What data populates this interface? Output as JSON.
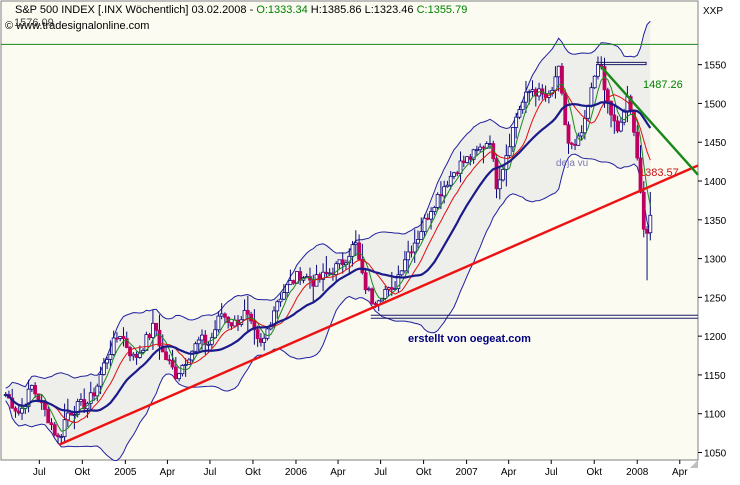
{
  "header": {
    "title_prefix": "S&P 500 INDEX [.INX  Wöchentlich] 03.02.2008 - ",
    "open": "O:1333.34",
    "high": "H:1385.86",
    "low": "L:1323.46",
    "close": "C:1355.79",
    "copyright": "© www.tradesignalonline.com",
    "symbol": "XXP",
    "hline_label": "1576.09"
  },
  "colors": {
    "background": "#fbfbf1",
    "price_up": "#0a0a7a",
    "price_down": "#c00060",
    "ma_fast": "#e01010",
    "ma_slow": "#1a1a8a",
    "ma_mid": "#1a8a1a",
    "bollinger": "#2020a0",
    "support": "#ee1111",
    "resistance": "#188818",
    "top_line": "#188818",
    "text_green": "#008000",
    "text_black": "#000000"
  },
  "chart_data": {
    "type": "line",
    "title": "S&P 500 INDEX [.INX  Wöchentlich] 03.02.2008",
    "ylim": [
      1040,
      1580
    ],
    "y_ticks": [
      1050,
      1100,
      1150,
      1200,
      1250,
      1300,
      1350,
      1400,
      1450,
      1500,
      1550
    ],
    "x_ticks": [
      {
        "label": "Jul",
        "date": "2004-07-01"
      },
      {
        "label": "Okt",
        "date": "2004-10-01"
      },
      {
        "label": "2005",
        "date": "2005-01-01"
      },
      {
        "label": "Apr",
        "date": "2005-04-01"
      },
      {
        "label": "Jul",
        "date": "2005-07-01"
      },
      {
        "label": "Okt",
        "date": "2005-10-01"
      },
      {
        "label": "2006",
        "date": "2006-01-01"
      },
      {
        "label": "Apr",
        "date": "2006-04-01"
      },
      {
        "label": "Jul",
        "date": "2006-07-01"
      },
      {
        "label": "Okt",
        "date": "2006-10-01"
      },
      {
        "label": "2007",
        "date": "2007-01-01"
      },
      {
        "label": "Apr",
        "date": "2007-04-01"
      },
      {
        "label": "Jul",
        "date": "2007-07-01"
      },
      {
        "label": "Okt",
        "date": "2007-10-01"
      },
      {
        "label": "2008",
        "date": "2008-01-01"
      },
      {
        "label": "Apr",
        "date": "2008-04-01"
      }
    ],
    "date_range": [
      "2004-04-10",
      "2008-05-10"
    ],
    "close_series": [
      [
        "2004-04-20",
        1125
      ],
      [
        "2004-05-20",
        1100
      ],
      [
        "2004-06-15",
        1135
      ],
      [
        "2004-07-20",
        1095
      ],
      [
        "2004-08-12",
        1065
      ],
      [
        "2004-08-28",
        1100
      ],
      [
        "2004-09-25",
        1110
      ],
      [
        "2004-10-15",
        1115
      ],
      [
        "2004-11-01",
        1135
      ],
      [
        "2004-11-20",
        1170
      ],
      [
        "2004-12-20",
        1205
      ],
      [
        "2005-01-20",
        1170
      ],
      [
        "2005-02-20",
        1200
      ],
      [
        "2005-03-05",
        1215
      ],
      [
        "2005-03-20",
        1180
      ],
      [
        "2005-04-20",
        1150
      ],
      [
        "2005-05-15",
        1175
      ],
      [
        "2005-06-10",
        1195
      ],
      [
        "2005-06-30",
        1190
      ],
      [
        "2005-07-25",
        1230
      ],
      [
        "2005-08-20",
        1215
      ],
      [
        "2005-09-15",
        1230
      ],
      [
        "2005-10-15",
        1185
      ],
      [
        "2005-10-25",
        1195
      ],
      [
        "2005-11-20",
        1245
      ],
      [
        "2005-12-15",
        1265
      ],
      [
        "2006-01-10",
        1280
      ],
      [
        "2006-02-10",
        1270
      ],
      [
        "2006-03-10",
        1280
      ],
      [
        "2006-04-10",
        1295
      ],
      [
        "2006-05-08",
        1320
      ],
      [
        "2006-05-25",
        1270
      ],
      [
        "2006-06-15",
        1245
      ],
      [
        "2006-07-10",
        1260
      ],
      [
        "2006-07-25",
        1255
      ],
      [
        "2006-08-20",
        1300
      ],
      [
        "2006-09-20",
        1330
      ],
      [
        "2006-10-20",
        1370
      ],
      [
        "2006-11-20",
        1400
      ],
      [
        "2006-12-15",
        1420
      ],
      [
        "2007-01-20",
        1435
      ],
      [
        "2007-02-20",
        1455
      ],
      [
        "2007-03-05",
        1395
      ],
      [
        "2007-03-20",
        1420
      ],
      [
        "2007-04-20",
        1490
      ],
      [
        "2007-05-20",
        1520
      ],
      [
        "2007-06-10",
        1510
      ],
      [
        "2007-06-30",
        1505
      ],
      [
        "2007-07-15",
        1550
      ],
      [
        "2007-08-05",
        1450
      ],
      [
        "2007-08-20",
        1440
      ],
      [
        "2007-09-10",
        1470
      ],
      [
        "2007-09-30",
        1530
      ],
      [
        "2007-10-10",
        1560
      ],
      [
        "2007-10-25",
        1510
      ],
      [
        "2007-11-20",
        1460
      ],
      [
        "2007-12-10",
        1505
      ],
      [
        "2007-12-25",
        1470
      ],
      [
        "2008-01-05",
        1410
      ],
      [
        "2008-01-15",
        1330
      ],
      [
        "2008-01-25",
        1330
      ],
      [
        "2008-02-03",
        1356
      ]
    ],
    "ohlc_last": {
      "open": 1333.34,
      "high": 1385.86,
      "low": 1323.46,
      "close": 1355.79
    },
    "levels": [
      {
        "name": "top",
        "value": 1576.09
      },
      {
        "name": "resistance",
        "value": 1487.26
      },
      {
        "name": "support",
        "value": 1383.57
      },
      {
        "name": "support-zone",
        "value": 1227
      }
    ],
    "trendlines": [
      {
        "name": "support",
        "from": [
          "2004-08-12",
          1060
        ],
        "to": [
          "2008-05-10",
          1420
        ]
      },
      {
        "name": "resistance",
        "from": [
          "2007-10-15",
          1548
        ],
        "to": [
          "2008-05-10",
          1408
        ]
      }
    ],
    "annotations": [
      "deja vu",
      "1487.26",
      "1383.57",
      "erstellt von oegeat.com"
    ]
  }
}
